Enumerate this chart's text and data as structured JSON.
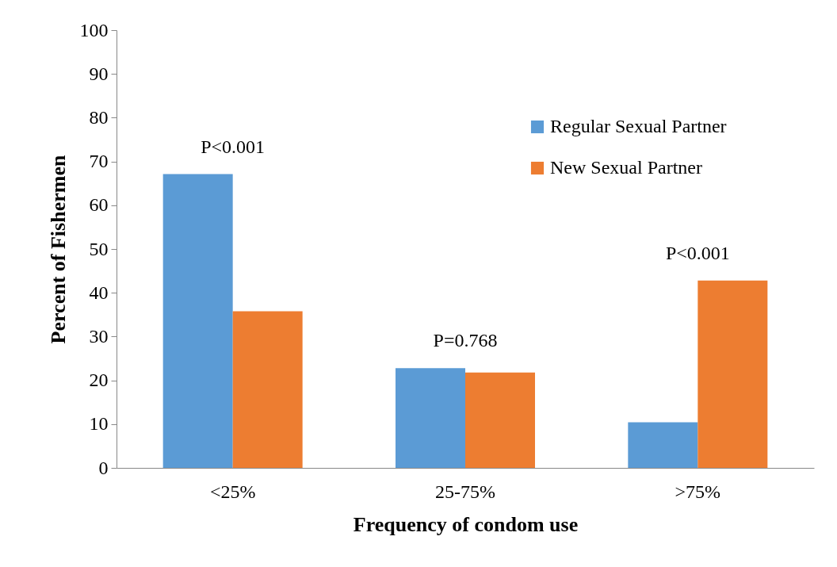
{
  "chart_data": {
    "type": "bar",
    "xlabel": "Frequency of condom use",
    "ylabel": "Percent of Fishermen",
    "categories": [
      "<25%",
      "25-75%",
      ">75%"
    ],
    "series": [
      {
        "name": "Regular Sexual Partner",
        "color": "#5b9bd5",
        "values": [
          67.1,
          22.8,
          10.4
        ]
      },
      {
        "name": "New Sexual Partner",
        "color": "#ed7d31",
        "values": [
          35.8,
          21.8,
          42.8
        ]
      }
    ],
    "ylim": [
      0,
      100
    ],
    "yticks": [
      0,
      10,
      20,
      30,
      40,
      50,
      60,
      70,
      80,
      90,
      100
    ],
    "legend": "top right",
    "annotations": [
      "P<0.001",
      "P=0.768",
      "P<0.001"
    ]
  }
}
